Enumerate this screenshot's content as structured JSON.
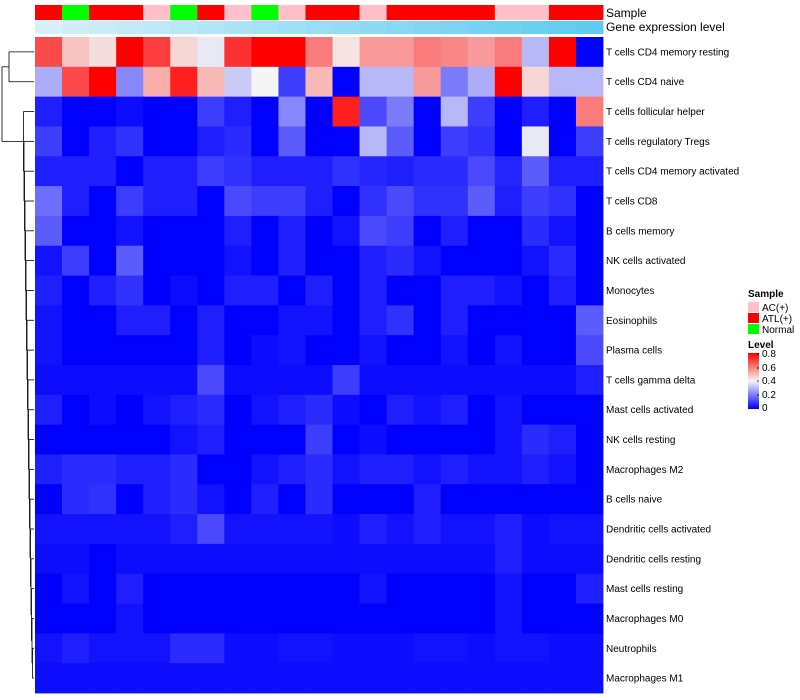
{
  "chart_data": {
    "type": "heatmap",
    "title": "",
    "rows": [
      "T cells CD4 memory resting",
      "T cells CD4 naive",
      "T cells follicular helper",
      "T cells regulatory  Tregs",
      "T cells CD4 memory activated",
      "T cells CD8",
      "B cells memory",
      "NK cells activated",
      "Monocytes",
      "Eosinophils",
      "Plasma cells",
      "T cells gamma delta",
      "Mast cells activated",
      "NK cells resting",
      "Macrophages M2",
      "B cells naive",
      "Dendritic cells activated",
      "Dendritic cells resting",
      "Mast cells resting",
      "Macrophages M0",
      "Neutrophils",
      "Macrophages M1"
    ],
    "column_annotation": {
      "label": "Sample",
      "groups": [
        "ATL(+)",
        "Normal",
        "ATL(+)",
        "ATL(+)",
        "AC(+)",
        "Normal",
        "ATL(+)",
        "AC(+)",
        "Normal",
        "AC(+)",
        "ATL(+)",
        "ATL(+)",
        "AC(+)",
        "ATL(+)",
        "ATL(+)",
        "ATL(+)",
        "ATL(+)",
        "AC(+)",
        "AC(+)",
        "ATL(+)",
        "ATL(+)"
      ]
    },
    "gene_expression_annotation": {
      "label": "Gene expression level",
      "values": [
        0.1,
        0.12,
        0.14,
        0.16,
        0.18,
        0.2,
        0.22,
        0.24,
        0.26,
        0.28,
        0.3,
        0.32,
        0.34,
        0.36,
        0.38,
        0.4,
        0.42,
        0.44,
        0.46,
        0.48,
        0.5
      ]
    },
    "values": [
      [
        0.68,
        0.48,
        0.44,
        0.8,
        0.7,
        0.45,
        0.38,
        0.72,
        0.8,
        0.8,
        0.6,
        0.43,
        0.55,
        0.55,
        0.6,
        0.58,
        0.55,
        0.6,
        0.3,
        0.8,
        0.0
      ],
      [
        0.28,
        0.68,
        0.8,
        0.22,
        0.52,
        0.75,
        0.5,
        0.33,
        0.4,
        0.1,
        0.5,
        0.0,
        0.3,
        0.3,
        0.55,
        0.2,
        0.28,
        0.8,
        0.45,
        0.3,
        0.3
      ],
      [
        0.05,
        0.0,
        0.0,
        0.02,
        0.0,
        0.0,
        0.1,
        0.05,
        0.0,
        0.22,
        0.0,
        0.75,
        0.12,
        0.2,
        0.0,
        0.3,
        0.1,
        0.0,
        0.05,
        0.0,
        0.6
      ],
      [
        0.1,
        0.0,
        0.05,
        0.08,
        0.0,
        0.0,
        0.05,
        0.07,
        0.0,
        0.15,
        0.0,
        0.0,
        0.3,
        0.15,
        0.0,
        0.1,
        0.08,
        0.0,
        0.38,
        0.0,
        0.1
      ],
      [
        0.05,
        0.05,
        0.05,
        0.0,
        0.05,
        0.05,
        0.1,
        0.08,
        0.05,
        0.05,
        0.05,
        0.08,
        0.06,
        0.05,
        0.07,
        0.07,
        0.12,
        0.06,
        0.15,
        0.05,
        0.05
      ],
      [
        0.18,
        0.05,
        0.0,
        0.1,
        0.05,
        0.05,
        0.0,
        0.12,
        0.1,
        0.1,
        0.05,
        0.0,
        0.08,
        0.12,
        0.08,
        0.08,
        0.15,
        0.05,
        0.1,
        0.08,
        0.0
      ],
      [
        0.15,
        0.0,
        0.0,
        0.03,
        0.0,
        0.0,
        0.0,
        0.05,
        0.0,
        0.05,
        0.0,
        0.03,
        0.12,
        0.1,
        0.0,
        0.05,
        0.0,
        0.0,
        0.07,
        0.03,
        0.0
      ],
      [
        0.03,
        0.1,
        0.0,
        0.15,
        0.0,
        0.0,
        0.0,
        0.03,
        0.0,
        0.05,
        0.0,
        0.0,
        0.05,
        0.07,
        0.03,
        0.0,
        0.0,
        0.0,
        0.03,
        0.07,
        0.0
      ],
      [
        0.05,
        0.0,
        0.05,
        0.08,
        0.0,
        0.02,
        0.0,
        0.05,
        0.05,
        0.0,
        0.05,
        0.0,
        0.05,
        0.0,
        0.0,
        0.05,
        0.05,
        0.03,
        0.0,
        0.05,
        0.0
      ],
      [
        0.03,
        0.0,
        0.0,
        0.05,
        0.05,
        0.0,
        0.05,
        0.0,
        0.0,
        0.03,
        0.03,
        0.0,
        0.05,
        0.08,
        0.0,
        0.05,
        0.0,
        0.0,
        0.0,
        0.0,
        0.15
      ],
      [
        0.03,
        0.0,
        0.0,
        0.0,
        0.0,
        0.0,
        0.05,
        0.0,
        0.02,
        0.03,
        0.0,
        0.0,
        0.03,
        0.0,
        0.0,
        0.03,
        0.0,
        0.03,
        0.0,
        0.0,
        0.12
      ],
      [
        0.02,
        0.02,
        0.02,
        0.02,
        0.02,
        0.02,
        0.12,
        0.02,
        0.02,
        0.02,
        0.02,
        0.1,
        0.02,
        0.02,
        0.02,
        0.02,
        0.02,
        0.02,
        0.02,
        0.02,
        0.05
      ],
      [
        0.05,
        0.0,
        0.02,
        0.0,
        0.03,
        0.05,
        0.07,
        0.0,
        0.03,
        0.05,
        0.07,
        0.02,
        0.0,
        0.05,
        0.03,
        0.05,
        0.0,
        0.03,
        0.0,
        0.0,
        0.0
      ],
      [
        0.0,
        0.0,
        0.0,
        0.0,
        0.0,
        0.03,
        0.05,
        0.0,
        0.0,
        0.0,
        0.1,
        0.0,
        0.02,
        0.0,
        0.0,
        0.0,
        0.0,
        0.03,
        0.07,
        0.05,
        0.0
      ],
      [
        0.05,
        0.07,
        0.07,
        0.05,
        0.05,
        0.07,
        0.0,
        0.0,
        0.03,
        0.05,
        0.07,
        0.03,
        0.05,
        0.05,
        0.03,
        0.05,
        0.03,
        0.03,
        0.05,
        0.03,
        0.0
      ],
      [
        0.0,
        0.07,
        0.08,
        0.0,
        0.05,
        0.07,
        0.03,
        0.0,
        0.05,
        0.0,
        0.07,
        0.0,
        0.0,
        0.0,
        0.05,
        0.0,
        0.0,
        0.0,
        0.0,
        0.0,
        0.0
      ],
      [
        0.03,
        0.03,
        0.03,
        0.03,
        0.03,
        0.05,
        0.12,
        0.03,
        0.03,
        0.03,
        0.03,
        0.02,
        0.05,
        0.03,
        0.05,
        0.03,
        0.03,
        0.05,
        0.02,
        0.03,
        0.03
      ],
      [
        0.02,
        0.02,
        0.0,
        0.02,
        0.02,
        0.02,
        0.02,
        0.02,
        0.02,
        0.02,
        0.02,
        0.02,
        0.02,
        0.02,
        0.02,
        0.02,
        0.02,
        0.05,
        0.02,
        0.02,
        0.02
      ],
      [
        0.0,
        0.03,
        0.0,
        0.05,
        0.0,
        0.0,
        0.0,
        0.0,
        0.0,
        0.0,
        0.0,
        0.0,
        0.03,
        0.0,
        0.0,
        0.0,
        0.0,
        0.03,
        0.0,
        0.0,
        0.05
      ],
      [
        0.0,
        0.0,
        0.0,
        0.03,
        0.0,
        0.0,
        0.0,
        0.0,
        0.0,
        0.0,
        0.0,
        0.0,
        0.0,
        0.0,
        0.0,
        0.0,
        0.0,
        0.03,
        0.0,
        0.0,
        0.0
      ],
      [
        0.03,
        0.05,
        0.03,
        0.03,
        0.03,
        0.07,
        0.07,
        0.02,
        0.02,
        0.03,
        0.03,
        0.02,
        0.02,
        0.02,
        0.03,
        0.03,
        0.02,
        0.03,
        0.03,
        0.02,
        0.02
      ],
      [
        0.02,
        0.02,
        0.02,
        0.02,
        0.02,
        0.02,
        0.02,
        0.02,
        0.02,
        0.02,
        0.02,
        0.02,
        0.02,
        0.02,
        0.02,
        0.02,
        0.02,
        0.02,
        0.02,
        0.02,
        0.02
      ]
    ],
    "color_scale": {
      "min": 0,
      "max": 0.8,
      "stops": [
        {
          "value": 0,
          "color": "#0000ff"
        },
        {
          "value": 0.4,
          "color": "#f5f5f5"
        },
        {
          "value": 0.8,
          "color": "#ff0000"
        }
      ]
    },
    "legend": {
      "placement": "right",
      "sample_title": "Sample",
      "sample_items": [
        {
          "label": "AC(+)",
          "color": "#ffc0cb"
        },
        {
          "label": "ATL(+)",
          "color": "#ff0000"
        },
        {
          "label": "Normal",
          "color": "#00ff00"
        }
      ],
      "level_title": "Level",
      "level_ticks": [
        "0.8",
        "0.6",
        "0.4",
        "0.2",
        "0"
      ]
    },
    "annotation_colors": {
      "gene_low": "#d6f0fa",
      "gene_high": "#5ecbef"
    }
  }
}
